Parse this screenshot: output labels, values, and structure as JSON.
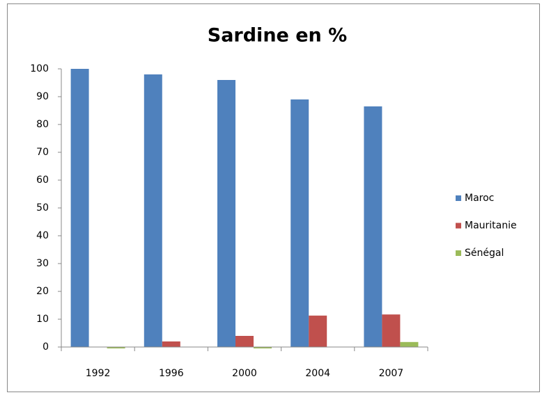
{
  "chart_data": {
    "type": "bar",
    "title": "Sardine en %",
    "categories": [
      "1992",
      "1996",
      "2000",
      "2004",
      "2007"
    ],
    "series": [
      {
        "name": "Maroc",
        "color": "#4f81bd",
        "values": [
          100,
          98,
          96,
          89,
          86.5
        ]
      },
      {
        "name": "Mauritanie",
        "color": "#c0504d",
        "values": [
          0,
          2,
          4,
          11.3,
          11.7
        ]
      },
      {
        "name": "Sénégal",
        "color": "#9bbb59",
        "values": [
          -0.5,
          0,
          -0.5,
          0,
          1.8
        ]
      }
    ],
    "ylim": [
      0,
      100
    ],
    "yticks": [
      0,
      10,
      20,
      30,
      40,
      50,
      60,
      70,
      80,
      90,
      100
    ],
    "grid": false,
    "legend": "right"
  }
}
